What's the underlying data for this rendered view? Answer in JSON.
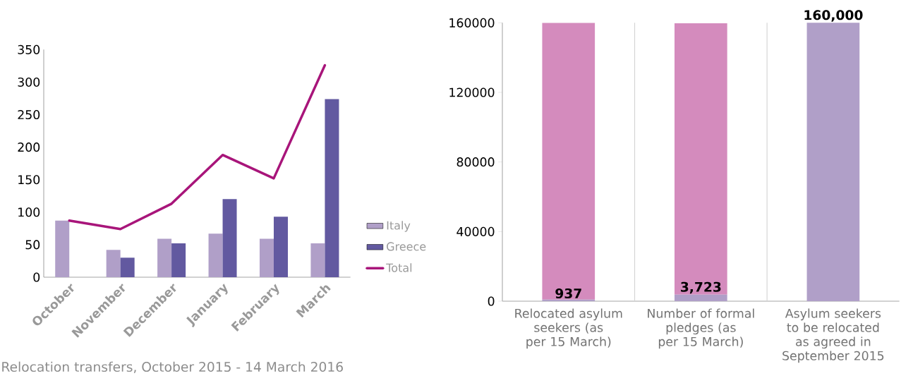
{
  "chart_data": [
    {
      "type": "bar",
      "categories": [
        "October",
        "November",
        "December",
        "January",
        "February",
        "March"
      ],
      "series": [
        {
          "name": "Italy",
          "color": "#b09fc8",
          "values": [
            87,
            42,
            59,
            67,
            59,
            52
          ]
        },
        {
          "name": "Greece",
          "color": "#6259a0",
          "values": [
            0,
            30,
            52,
            120,
            93,
            274
          ]
        },
        {
          "name": "Total",
          "type": "line",
          "color": "#a8157a",
          "values": [
            87,
            74,
            113,
            188,
            152,
            326
          ]
        }
      ],
      "ylim": [
        0,
        350
      ],
      "yticks": [
        0,
        50,
        100,
        150,
        200,
        250,
        300,
        350
      ],
      "legend": "bottom right",
      "annotations": [
        "Relocation transfers, October 2015 - 14 March 2016"
      ]
    },
    {
      "type": "bar",
      "stacked": true,
      "categories": [
        "Relocated asylum seekers (as per 15 March)",
        "Number of formal pledges (as per 15 March)",
        "Asylum seekers to be relocated as agreed in September 2015"
      ],
      "series": [
        {
          "color": "#b09fc8",
          "values": [
            937,
            3723,
            160000
          ],
          "value_labels": [
            "937",
            "3,723",
            "160,000"
          ]
        },
        {
          "color": "#d48bbd",
          "values": [
            159000,
            156000,
            null
          ]
        }
      ],
      "ylim": [
        0,
        160000
      ],
      "yticks": [
        0,
        40000,
        80000,
        120000,
        160000
      ]
    }
  ]
}
